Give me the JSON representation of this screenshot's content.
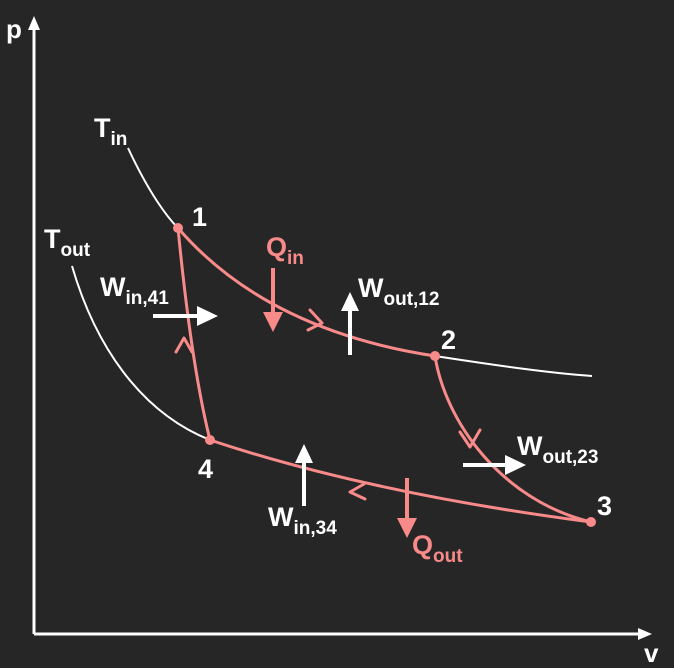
{
  "colors": {
    "background": "#262626",
    "axis": "#ffffff",
    "isotherm": "#ffffff",
    "cycle": "#f88a8a",
    "text_white": "#ffffff",
    "text_pink": "#f88a8a"
  },
  "axes": {
    "y_label": "p",
    "x_label": "v"
  },
  "isotherms": {
    "t_in": {
      "main": "T",
      "sub": "in"
    },
    "t_out": {
      "main": "T",
      "sub": "out"
    }
  },
  "states": {
    "s1": "1",
    "s2": "2",
    "s3": "3",
    "s4": "4"
  },
  "heat": {
    "q_in": {
      "main": "Q",
      "sub": "in"
    },
    "q_out": {
      "main": "Q",
      "sub": "out"
    }
  },
  "work": {
    "w_out_12": {
      "main": "W",
      "sub": "out,12"
    },
    "w_out_23": {
      "main": "W",
      "sub": "out,23"
    },
    "w_in_34": {
      "main": "W",
      "sub": "in,34"
    },
    "w_in_41": {
      "main": "W",
      "sub": "in,41"
    }
  }
}
